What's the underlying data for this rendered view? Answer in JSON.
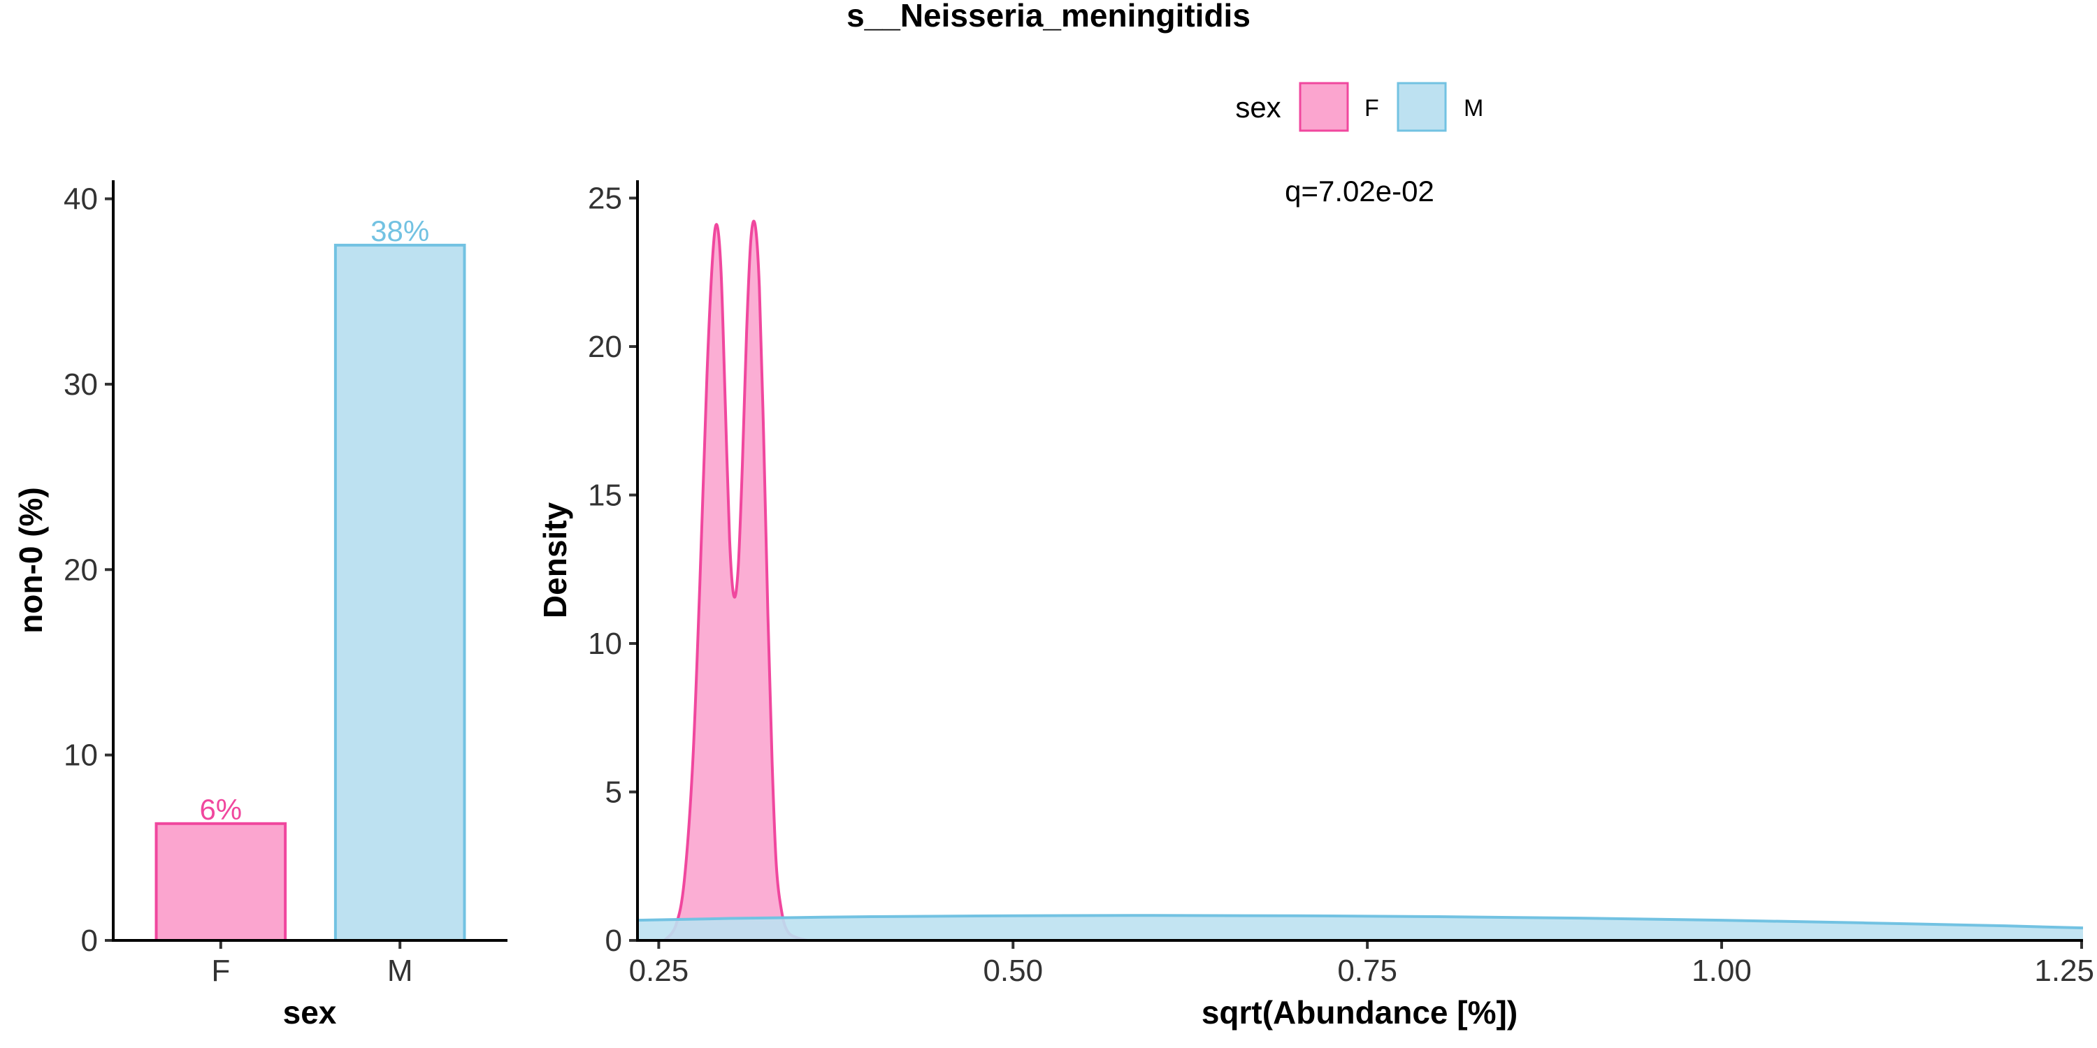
{
  "chart_data": [
    {
      "type": "bar",
      "title": "s__Neisseria_meningitidis",
      "xlabel": "sex",
      "ylabel": "non-0 (%)",
      "categories": [
        "F",
        "M"
      ],
      "values": [
        6.3,
        37.5
      ],
      "value_labels": [
        "6%",
        "38%"
      ],
      "ylim": [
        0,
        41
      ],
      "yticks": [
        0,
        10,
        20,
        30,
        40
      ],
      "colors": {
        "F": {
          "fill": "#FBA5CF",
          "stroke": "#F0479E"
        },
        "M": {
          "fill": "#BDE1F1",
          "stroke": "#72C2E2"
        }
      }
    },
    {
      "type": "area",
      "xlabel": "sqrt(Abundance [%])",
      "ylabel": "Density",
      "annotation": "q=7.02e-02",
      "xlim": [
        0.235,
        1.255
      ],
      "ylim": [
        0,
        25.6
      ],
      "xticks": [
        0.25,
        0.5,
        0.75,
        1.0
      ],
      "xtick_labels": [
        "0.25",
        "0.50",
        "0.75",
        "1.00"
      ],
      "xtick_edge_label": "1.25",
      "yticks": [
        0,
        5,
        10,
        15,
        20,
        25
      ],
      "legend": {
        "title": "sex",
        "position": "top",
        "entries": [
          "F",
          "M"
        ]
      },
      "series": [
        {
          "name": "F",
          "fill": "#FBA5CF",
          "stroke": "#F0479E",
          "x": [
            0.254,
            0.262,
            0.268,
            0.274,
            0.279,
            0.284,
            0.288,
            0.291,
            0.294,
            0.297,
            0.3,
            0.303,
            0.306,
            0.309,
            0.312,
            0.315,
            0.318,
            0.321,
            0.324,
            0.327,
            0.33,
            0.333,
            0.337,
            0.341,
            0.347,
            0.355
          ],
          "y": [
            0,
            0.5,
            2,
            6,
            12,
            19,
            23,
            24.1,
            22.5,
            18,
            13.5,
            11.6,
            12.5,
            16,
            20.5,
            23.6,
            24.1,
            22,
            17,
            11,
            6,
            2.5,
            0.9,
            0.3,
            0.1,
            0
          ]
        },
        {
          "name": "M",
          "fill": "#BDE1F1",
          "stroke": "#72C2E2",
          "x": [
            0.235,
            0.3,
            0.4,
            0.5,
            0.6,
            0.7,
            0.8,
            0.9,
            1.0,
            1.1,
            1.2,
            1.255
          ],
          "y": [
            0.68,
            0.74,
            0.8,
            0.83,
            0.84,
            0.83,
            0.8,
            0.75,
            0.68,
            0.59,
            0.49,
            0.42
          ]
        }
      ]
    }
  ]
}
